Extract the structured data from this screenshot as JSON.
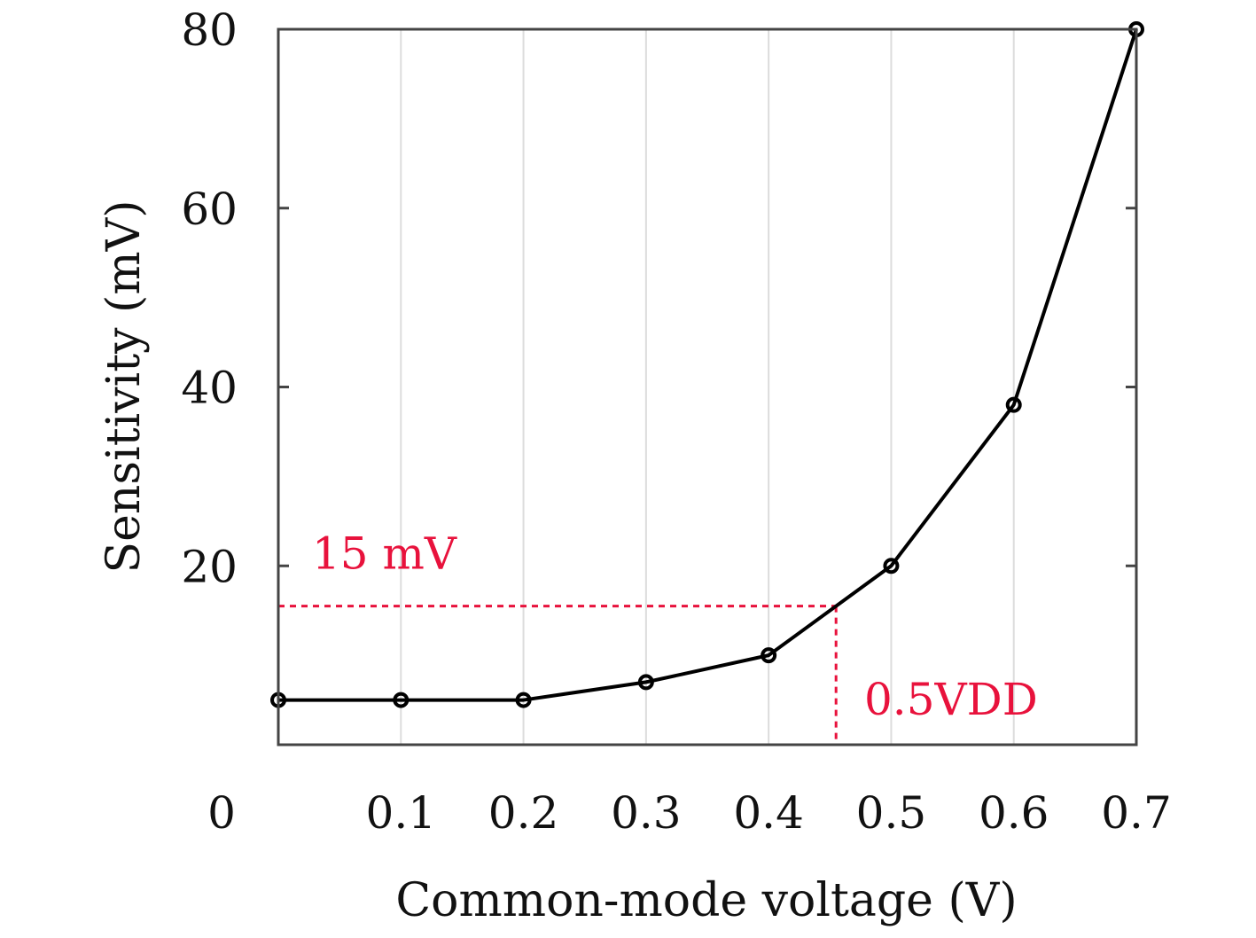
{
  "chart_data": {
    "type": "line",
    "title": "",
    "xlabel": "Common-mode voltage (V)",
    "ylabel": "Sensitivity (mV)",
    "xlim": [
      0,
      0.7
    ],
    "ylim": [
      0,
      80
    ],
    "x_ticks": [
      "0",
      "0.1",
      "0.2",
      "0.3",
      "0.4",
      "0.5",
      "0.6",
      "0.7"
    ],
    "y_ticks": [
      "20",
      "40",
      "60",
      "80"
    ],
    "grid": "vertical",
    "legend": "none",
    "series": [
      {
        "x": [
          0,
          0.1,
          0.2,
          0.3,
          0.4,
          0.5,
          0.6,
          0.7
        ],
        "y": [
          5,
          5,
          5,
          7,
          10,
          20,
          38,
          80
        ],
        "marker": "circle",
        "color": "#000000"
      }
    ],
    "annotations": [
      {
        "text": "15 mV",
        "type": "horizontal-reference",
        "y": 15.5,
        "x_from": 0,
        "x_to": 0.455,
        "color": "#e8123c"
      },
      {
        "text": "0.5VDD",
        "type": "vertical-reference",
        "x": 0.455,
        "y_from": 0,
        "y_to": 15.5,
        "color": "#e8123c"
      }
    ]
  }
}
